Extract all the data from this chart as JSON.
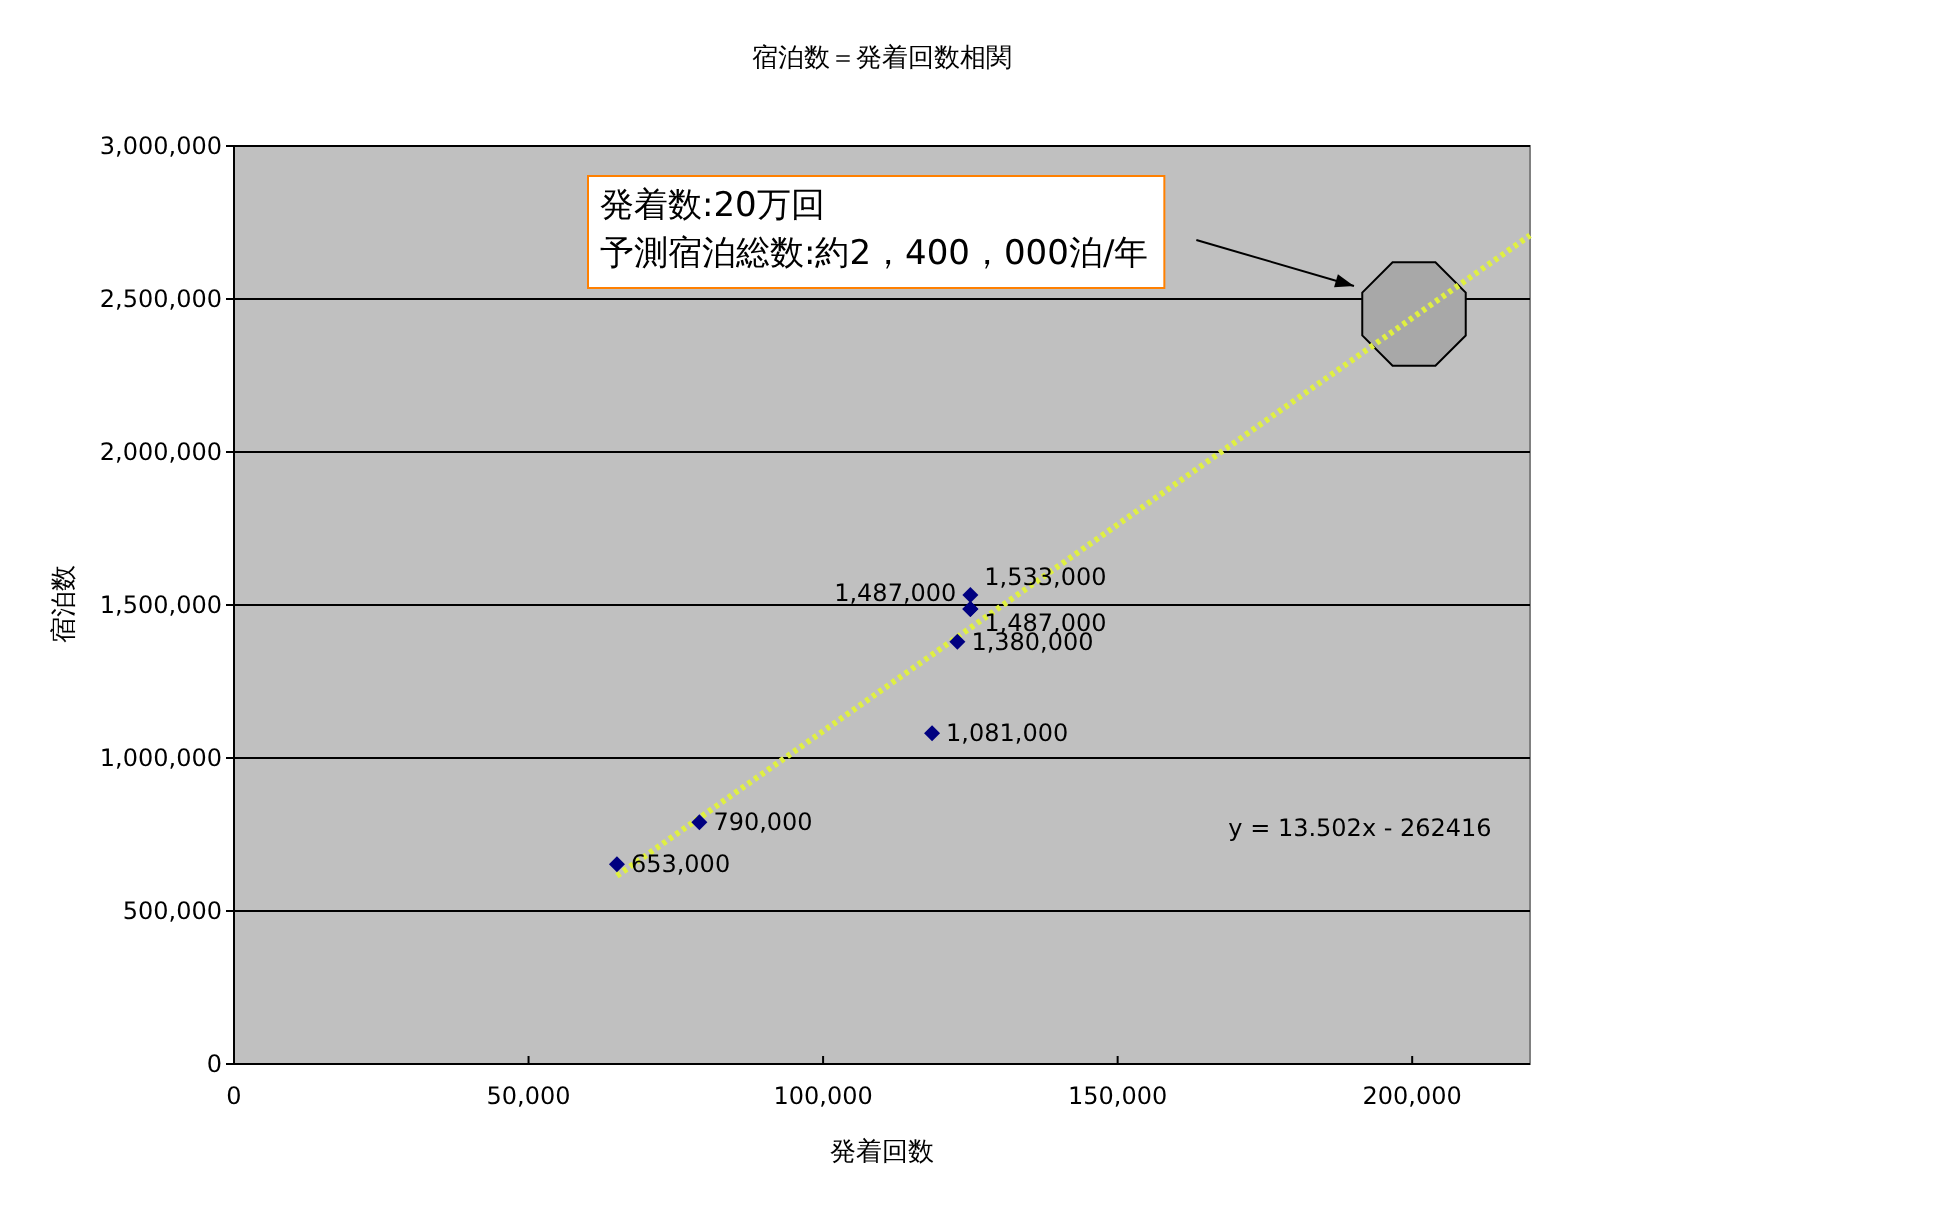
{
  "chart_data": {
    "type": "scatter",
    "title": "宿泊数＝発着回数相関",
    "xlabel": "発着回数",
    "ylabel": "宿泊数",
    "xlim": [
      0,
      220000
    ],
    "ylim": [
      0,
      3000000
    ],
    "xticks": [
      {
        "value": 0,
        "label": "0"
      },
      {
        "value": 50000,
        "label": "50,000"
      },
      {
        "value": 100000,
        "label": "100,000"
      },
      {
        "value": 150000,
        "label": "150,000"
      },
      {
        "value": 200000,
        "label": "200,000"
      }
    ],
    "yticks": [
      {
        "value": 0,
        "label": "0"
      },
      {
        "value": 500000,
        "label": "500,000"
      },
      {
        "value": 1000000,
        "label": "1,000,000"
      },
      {
        "value": 1500000,
        "label": "1,500,000"
      },
      {
        "value": 2000000,
        "label": "2,000,000"
      },
      {
        "value": 2500000,
        "label": "2,500,000"
      },
      {
        "value": 3000000,
        "label": "3,000,000"
      }
    ],
    "grid": "y",
    "series": [
      {
        "marker": "diamond",
        "color": "#000080",
        "x": [
          65000,
          79000,
          118500,
          122800,
          125000,
          125000,
          125000
        ],
        "values": [
          653000,
          790000,
          1081000,
          1380000,
          1487000,
          1487000,
          1533000
        ],
        "value_labels": [
          "653,000",
          "790,000",
          "1,081,000",
          "1,380,000",
          "1,487,000",
          "1,487,000",
          "1,533,000"
        ]
      },
      {
        "type": "line",
        "color": "#e0f040",
        "line_style": "dotted",
        "x": [
          65000,
          220000
        ],
        "values": [
          615000,
          2708000
        ]
      }
    ],
    "annotations": [
      "発着数:20万回",
      "予測宿泊総数:約2，400，000泊/年",
      "y = 13.502x - 262416"
    ]
  }
}
